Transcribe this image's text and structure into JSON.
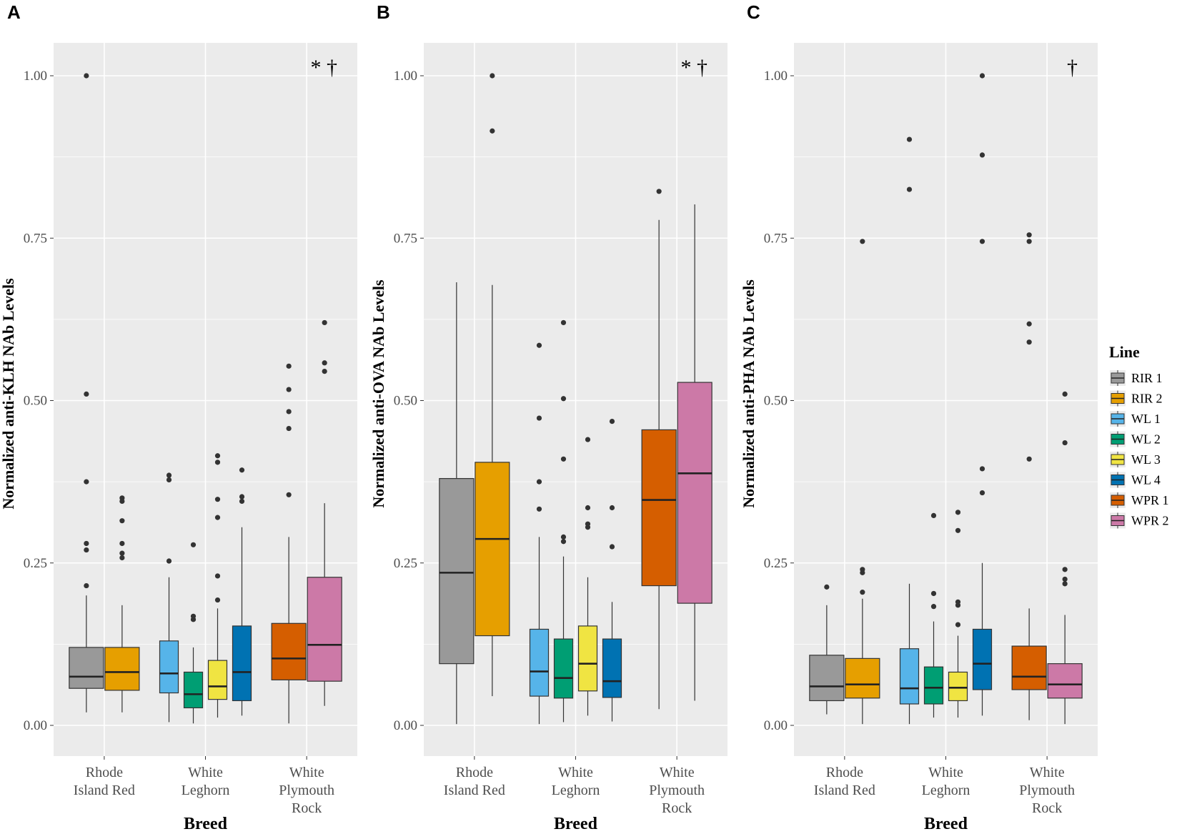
{
  "chart_data": [
    {
      "type": "boxplot",
      "panel_label": "A",
      "ylabel": "Normalized anti-KLH NAb Levels",
      "xlabel": "Breed",
      "ylim": [
        -0.05,
        1.05
      ],
      "yticks": [
        "0.00",
        "0.25",
        "0.50",
        "0.75",
        "1.00"
      ],
      "annotation": "* †",
      "categories": [
        {
          "name": "Rhode Island Red",
          "lines": [
            "Rhode",
            "Island Red"
          ]
        },
        {
          "name": "White Leghorn",
          "lines": [
            "White",
            "Leghorn"
          ]
        },
        {
          "name": "White Plymouth Rock",
          "lines": [
            "White",
            "Plymouth",
            "Rock"
          ]
        }
      ],
      "boxes": [
        {
          "line": "RIR 1",
          "category": 0,
          "slot": 0,
          "n_slots": 2,
          "min": 0.02,
          "q1": 0.057,
          "median": 0.075,
          "q3": 0.12,
          "max": 0.2,
          "outliers": [
            0.215,
            0.27,
            0.28,
            0.375,
            0.51,
            1.0
          ]
        },
        {
          "line": "RIR 2",
          "category": 0,
          "slot": 1,
          "n_slots": 2,
          "min": 0.02,
          "q1": 0.054,
          "median": 0.082,
          "q3": 0.12,
          "max": 0.185,
          "outliers": [
            0.258,
            0.265,
            0.28,
            0.315,
            0.345,
            0.35
          ]
        },
        {
          "line": "WL 1",
          "category": 1,
          "slot": 0,
          "n_slots": 4,
          "min": 0.005,
          "q1": 0.05,
          "median": 0.08,
          "q3": 0.13,
          "max": 0.228,
          "outliers": [
            0.253,
            0.378,
            0.385
          ]
        },
        {
          "line": "WL 2",
          "category": 1,
          "slot": 1,
          "n_slots": 4,
          "min": 0.003,
          "q1": 0.027,
          "median": 0.048,
          "q3": 0.082,
          "max": 0.12,
          "outliers": [
            0.163,
            0.168,
            0.278
          ]
        },
        {
          "line": "WL 3",
          "category": 1,
          "slot": 2,
          "n_slots": 4,
          "min": 0.012,
          "q1": 0.04,
          "median": 0.06,
          "q3": 0.1,
          "max": 0.18,
          "outliers": [
            0.193,
            0.23,
            0.32,
            0.348,
            0.405,
            0.415
          ]
        },
        {
          "line": "WL 4",
          "category": 1,
          "slot": 3,
          "n_slots": 4,
          "min": 0.015,
          "q1": 0.038,
          "median": 0.082,
          "q3": 0.153,
          "max": 0.305,
          "outliers": [
            0.345,
            0.352,
            0.393
          ]
        },
        {
          "line": "WPR 1",
          "category": 2,
          "slot": 0,
          "n_slots": 2,
          "min": 0.003,
          "q1": 0.07,
          "median": 0.103,
          "q3": 0.157,
          "max": 0.29,
          "outliers": [
            0.355,
            0.457,
            0.483,
            0.517,
            0.553
          ]
        },
        {
          "line": "WPR 2",
          "category": 2,
          "slot": 1,
          "n_slots": 2,
          "min": 0.03,
          "q1": 0.068,
          "median": 0.124,
          "q3": 0.228,
          "max": 0.342,
          "outliers": [
            0.545,
            0.558,
            0.62
          ]
        }
      ]
    },
    {
      "type": "boxplot",
      "panel_label": "B",
      "ylabel": "Normalized anti-OVA NAb Levels",
      "xlabel": "Breed",
      "ylim": [
        -0.05,
        1.05
      ],
      "yticks": [
        "0.00",
        "0.25",
        "0.50",
        "0.75",
        "1.00"
      ],
      "annotation": "* †",
      "categories": [
        {
          "name": "Rhode Island Red",
          "lines": [
            "Rhode",
            "Island Red"
          ]
        },
        {
          "name": "White Leghorn",
          "lines": [
            "White",
            "Leghorn"
          ]
        },
        {
          "name": "White Plymouth Rock",
          "lines": [
            "White",
            "Plymouth",
            "Rock"
          ]
        }
      ],
      "boxes": [
        {
          "line": "RIR 1",
          "category": 0,
          "slot": 0,
          "n_slots": 2,
          "min": 0.002,
          "q1": 0.095,
          "median": 0.235,
          "q3": 0.38,
          "max": 0.682,
          "outliers": []
        },
        {
          "line": "RIR 2",
          "category": 0,
          "slot": 1,
          "n_slots": 2,
          "min": 0.045,
          "q1": 0.138,
          "median": 0.287,
          "q3": 0.405,
          "max": 0.678,
          "outliers": [
            0.915,
            1.0
          ]
        },
        {
          "line": "WL 1",
          "category": 1,
          "slot": 0,
          "n_slots": 4,
          "min": 0.002,
          "q1": 0.045,
          "median": 0.083,
          "q3": 0.148,
          "max": 0.29,
          "outliers": [
            0.333,
            0.375,
            0.473,
            0.585
          ]
        },
        {
          "line": "WL 2",
          "category": 1,
          "slot": 1,
          "n_slots": 4,
          "min": 0.005,
          "q1": 0.042,
          "median": 0.073,
          "q3": 0.133,
          "max": 0.26,
          "outliers": [
            0.283,
            0.29,
            0.41,
            0.503,
            0.62
          ]
        },
        {
          "line": "WL 3",
          "category": 1,
          "slot": 2,
          "n_slots": 4,
          "min": 0.015,
          "q1": 0.053,
          "median": 0.095,
          "q3": 0.153,
          "max": 0.228,
          "outliers": [
            0.305,
            0.31,
            0.335,
            0.44
          ]
        },
        {
          "line": "WL 4",
          "category": 1,
          "slot": 3,
          "n_slots": 4,
          "min": 0.006,
          "q1": 0.043,
          "median": 0.068,
          "q3": 0.133,
          "max": 0.19,
          "outliers": [
            0.275,
            0.335,
            0.468
          ]
        },
        {
          "line": "WPR 1",
          "category": 2,
          "slot": 0,
          "n_slots": 2,
          "min": 0.025,
          "q1": 0.215,
          "median": 0.347,
          "q3": 0.455,
          "max": 0.778,
          "outliers": [
            0.822
          ]
        },
        {
          "line": "WPR 2",
          "category": 2,
          "slot": 1,
          "n_slots": 2,
          "min": 0.038,
          "q1": 0.188,
          "median": 0.388,
          "q3": 0.528,
          "max": 0.802,
          "outliers": []
        }
      ]
    },
    {
      "type": "boxplot",
      "panel_label": "C",
      "ylabel": "Normalized anti-PHA NAb Levels",
      "xlabel": "Breed",
      "ylim": [
        -0.05,
        1.05
      ],
      "yticks": [
        "0.00",
        "0.25",
        "0.50",
        "0.75",
        "1.00"
      ],
      "annotation": "†",
      "categories": [
        {
          "name": "Rhode Island Red",
          "lines": [
            "Rhode",
            "Island Red"
          ]
        },
        {
          "name": "White Leghorn",
          "lines": [
            "White",
            "Leghorn"
          ]
        },
        {
          "name": "White Plymouth Rock",
          "lines": [
            "White",
            "Plymouth",
            "Rock"
          ]
        }
      ],
      "boxes": [
        {
          "line": "RIR 1",
          "category": 0,
          "slot": 0,
          "n_slots": 2,
          "min": 0.017,
          "q1": 0.038,
          "median": 0.06,
          "q3": 0.108,
          "max": 0.185,
          "outliers": [
            0.213
          ]
        },
        {
          "line": "RIR 2",
          "category": 0,
          "slot": 1,
          "n_slots": 2,
          "min": 0.002,
          "q1": 0.042,
          "median": 0.063,
          "q3": 0.103,
          "max": 0.195,
          "outliers": [
            0.205,
            0.235,
            0.24,
            0.745
          ]
        },
        {
          "line": "WL 1",
          "category": 1,
          "slot": 0,
          "n_slots": 4,
          "min": 0.002,
          "q1": 0.033,
          "median": 0.057,
          "q3": 0.118,
          "max": 0.218,
          "outliers": [
            0.825,
            0.902
          ]
        },
        {
          "line": "WL 2",
          "category": 1,
          "slot": 1,
          "n_slots": 4,
          "min": 0.012,
          "q1": 0.033,
          "median": 0.058,
          "q3": 0.09,
          "max": 0.16,
          "outliers": [
            0.183,
            0.203,
            0.323
          ]
        },
        {
          "line": "WL 3",
          "category": 1,
          "slot": 2,
          "n_slots": 4,
          "min": 0.012,
          "q1": 0.038,
          "median": 0.058,
          "q3": 0.082,
          "max": 0.138,
          "outliers": [
            0.155,
            0.185,
            0.19,
            0.3,
            0.328
          ]
        },
        {
          "line": "WL 4",
          "category": 1,
          "slot": 3,
          "n_slots": 4,
          "min": 0.015,
          "q1": 0.055,
          "median": 0.095,
          "q3": 0.148,
          "max": 0.25,
          "outliers": [
            0.358,
            0.395,
            0.745,
            0.878,
            1.0
          ]
        },
        {
          "line": "WPR 1",
          "category": 2,
          "slot": 0,
          "n_slots": 2,
          "min": 0.008,
          "q1": 0.055,
          "median": 0.075,
          "q3": 0.122,
          "max": 0.18,
          "outliers": [
            0.41,
            0.59,
            0.618,
            0.745,
            0.755
          ]
        },
        {
          "line": "WPR 2",
          "category": 2,
          "slot": 1,
          "n_slots": 2,
          "min": 0.002,
          "q1": 0.042,
          "median": 0.063,
          "q3": 0.095,
          "max": 0.17,
          "outliers": [
            0.218,
            0.225,
            0.24,
            0.435,
            0.51
          ]
        }
      ]
    }
  ],
  "legend": {
    "title": "Line",
    "entries": [
      {
        "label": "RIR 1",
        "color": "#999999"
      },
      {
        "label": "RIR 2",
        "color": "#E69F00"
      },
      {
        "label": "WL 1",
        "color": "#56B4E9"
      },
      {
        "label": "WL 2",
        "color": "#009E73"
      },
      {
        "label": "WL 3",
        "color": "#F0E442"
      },
      {
        "label": "WL 4",
        "color": "#0072B2"
      },
      {
        "label": "WPR 1",
        "color": "#D55E00"
      },
      {
        "label": "WPR 2",
        "color": "#CC79A7"
      }
    ]
  },
  "colors": {
    "panel_background": "#EBEBEB",
    "grid": "#FFFFFF",
    "outlier": "#333333"
  }
}
